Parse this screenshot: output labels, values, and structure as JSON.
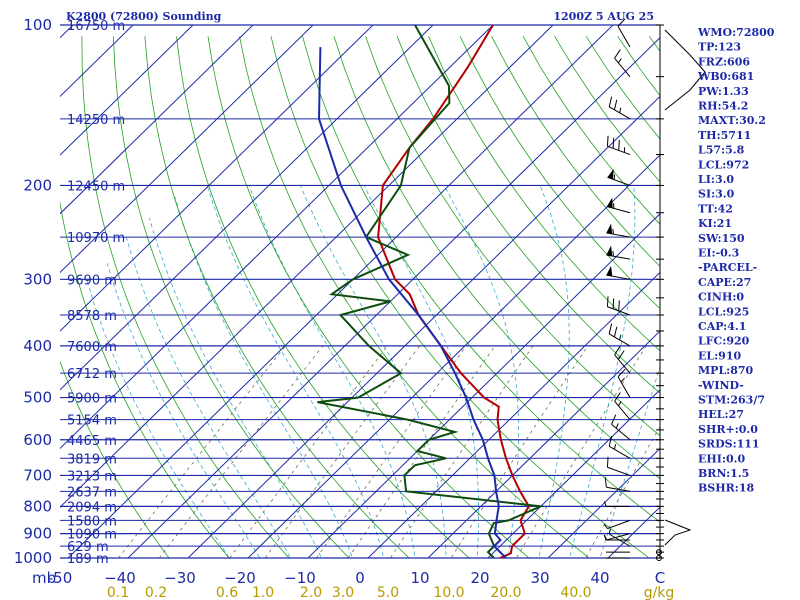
{
  "header": {
    "title": "K2800 (72800) Sounding",
    "time": "1200Z  5 AUG 25"
  },
  "axis_labels": {
    "pressure_unit": "mb",
    "mixing_unit": "g/kg"
  },
  "colors": {
    "isobar": "#1c2aa8",
    "temperature": "#b40000",
    "dewpoint": "#0e4d0e",
    "parcel": "#1c2aa8",
    "dry_adiabat": "#22a022",
    "moist_adiabat": "#3aa8cf",
    "mixing_ratio": "#6e6e50",
    "mixing_label": "#b59a00"
  },
  "indices": [
    "WMO:72800",
    "TP:123",
    "FRZ:606",
    "WB0:681",
    "PW:1.33",
    "RH:54.2",
    "MAXT:30.2",
    "TH:5711",
    "L57:5.8",
    "LCL:972",
    "LI:3.0",
    "SI:3.0",
    "TT:42",
    "KI:21",
    "SW:150",
    "EI:-0.3",
    "-PARCEL-",
    "CAPE:27",
    "CINH:0",
    "LCL:925",
    "CAP:4.1",
    "LFC:920",
    "EL:910",
    "MPL:870",
    "-WIND-",
    "STM:263/7",
    "HEL:27",
    "SHR+:0.0",
    "SRDS:111",
    "EHI:0.0",
    "BRN:1.5",
    "BSHR:18"
  ],
  "chart_data": {
    "type": "line",
    "chart_kind": "skew-T log-P sounding",
    "x_axis": {
      "label": "C",
      "range": [
        -50,
        50
      ],
      "ticks": [
        -50,
        -40,
        -30,
        -20,
        -10,
        0,
        10,
        20,
        30,
        40,
        50
      ],
      "tick_labels": [
        "-50",
        "−40",
        "−30",
        "−20",
        "−10",
        "0",
        "10",
        "20",
        "30",
        "40",
        "C"
      ]
    },
    "y_axis": {
      "label": "mb",
      "scale": "log",
      "range": [
        1000,
        100
      ],
      "ticks": [
        100,
        200,
        300,
        400,
        500,
        600,
        700,
        800,
        900,
        1000
      ]
    },
    "height_labels": [
      {
        "p": 100,
        "text": "16750 m"
      },
      {
        "p": 150,
        "text": "14250 m"
      },
      {
        "p": 200,
        "text": "12450 m"
      },
      {
        "p": 250,
        "text": "10970 m"
      },
      {
        "p": 300,
        "text": "9690 m"
      },
      {
        "p": 350,
        "text": "8578 m"
      },
      {
        "p": 400,
        "text": "7600 m"
      },
      {
        "p": 450,
        "text": "6712 m"
      },
      {
        "p": 500,
        "text": "5900 m"
      },
      {
        "p": 550,
        "text": "5154 m"
      },
      {
        "p": 600,
        "text": "4465 m"
      },
      {
        "p": 650,
        "text": "3819 m"
      },
      {
        "p": 700,
        "text": "3213 m"
      },
      {
        "p": 750,
        "text": "2637 m"
      },
      {
        "p": 800,
        "text": "2094 m"
      },
      {
        "p": 850,
        "text": "1580 m"
      },
      {
        "p": 900,
        "text": "1090 m"
      },
      {
        "p": 950,
        "text": "629 m"
      },
      {
        "p": 1000,
        "text": "189 m"
      }
    ],
    "mixing_ratio_labels": [
      "0.1",
      "0.2",
      "0.6",
      "1.0",
      "2.0",
      "3.0",
      "5.0",
      "10.0",
      "20.0",
      "40.0",
      "g/kg"
    ],
    "series": [
      {
        "name": "temperature",
        "points": [
          [
            1000,
            22
          ],
          [
            980,
            23
          ],
          [
            950,
            22
          ],
          [
            900,
            22
          ],
          [
            850,
            19
          ],
          [
            800,
            18
          ],
          [
            750,
            14
          ],
          [
            700,
            10
          ],
          [
            650,
            6
          ],
          [
            600,
            2
          ],
          [
            550,
            -2
          ],
          [
            520,
            -4
          ],
          [
            500,
            -8
          ],
          [
            450,
            -16
          ],
          [
            400,
            -24
          ],
          [
            350,
            -33
          ],
          [
            320,
            -38
          ],
          [
            300,
            -43
          ],
          [
            250,
            -53
          ],
          [
            200,
            -61
          ],
          [
            170,
            -63
          ],
          [
            150,
            -64
          ],
          [
            120,
            -67
          ],
          [
            100,
            -70
          ]
        ]
      },
      {
        "name": "dewpoint",
        "points": [
          [
            1000,
            21
          ],
          [
            975,
            19
          ],
          [
            950,
            19
          ],
          [
            900,
            16
          ],
          [
            860,
            15
          ],
          [
            850,
            17
          ],
          [
            800,
            20
          ],
          [
            750,
            -5
          ],
          [
            700,
            -8
          ],
          [
            670,
            -8
          ],
          [
            650,
            -4
          ],
          [
            630,
            -10
          ],
          [
            600,
            -10
          ],
          [
            580,
            -7
          ],
          [
            550,
            -17
          ],
          [
            510,
            -35
          ],
          [
            500,
            -29
          ],
          [
            450,
            -26
          ],
          [
            400,
            -36
          ],
          [
            350,
            -46
          ],
          [
            330,
            -40
          ],
          [
            320,
            -51
          ],
          [
            300,
            -50
          ],
          [
            270,
            -45
          ],
          [
            250,
            -55
          ],
          [
            200,
            -58
          ],
          [
            170,
            -63
          ],
          [
            140,
            -64
          ],
          [
            130,
            -67
          ],
          [
            100,
            -83
          ]
        ]
      },
      {
        "name": "parcel",
        "points": [
          [
            1000,
            23
          ],
          [
            950,
            19
          ],
          [
            925,
            19
          ],
          [
            900,
            17
          ],
          [
            850,
            15
          ],
          [
            800,
            13
          ],
          [
            750,
            10
          ],
          [
            700,
            7
          ],
          [
            650,
            3
          ],
          [
            600,
            -1
          ],
          [
            550,
            -6
          ],
          [
            500,
            -11
          ],
          [
            450,
            -17
          ],
          [
            400,
            -24
          ],
          [
            350,
            -33
          ],
          [
            300,
            -44
          ],
          [
            250,
            -55
          ],
          [
            200,
            -68
          ],
          [
            150,
            -83
          ],
          [
            110,
            -95
          ]
        ]
      }
    ],
    "wind_barbs": [
      {
        "p": 1000,
        "dir": 270,
        "spd": 0
      },
      {
        "p": 975,
        "dir": 270,
        "spd": 0
      },
      {
        "p": 950,
        "dir": 300,
        "spd": 5
      },
      {
        "p": 925,
        "dir": 270,
        "spd": 5
      },
      {
        "p": 900,
        "dir": 255,
        "spd": 5
      },
      {
        "p": 850,
        "dir": 250,
        "spd": 5
      },
      {
        "p": 800,
        "dir": 270,
        "spd": 5
      },
      {
        "p": 750,
        "dir": 280,
        "spd": 10
      },
      {
        "p": 700,
        "dir": 290,
        "spd": 10
      },
      {
        "p": 650,
        "dir": 300,
        "spd": 15
      },
      {
        "p": 600,
        "dir": 310,
        "spd": 15
      },
      {
        "p": 550,
        "dir": 320,
        "spd": 15
      },
      {
        "p": 500,
        "dir": 330,
        "spd": 15
      },
      {
        "p": 450,
        "dir": 320,
        "spd": 20
      },
      {
        "p": 400,
        "dir": 300,
        "spd": 25
      },
      {
        "p": 350,
        "dir": 290,
        "spd": 30
      },
      {
        "p": 300,
        "dir": 280,
        "spd": 50
      },
      {
        "p": 275,
        "dir": 280,
        "spd": 55
      },
      {
        "p": 250,
        "dir": 280,
        "spd": 55
      },
      {
        "p": 225,
        "dir": 285,
        "spd": 55
      },
      {
        "p": 200,
        "dir": 290,
        "spd": 55
      },
      {
        "p": 175,
        "dir": 290,
        "spd": 35
      },
      {
        "p": 150,
        "dir": 300,
        "spd": 25
      },
      {
        "p": 125,
        "dir": 320,
        "spd": 15
      },
      {
        "p": 110,
        "dir": 330,
        "spd": 10
      }
    ]
  }
}
